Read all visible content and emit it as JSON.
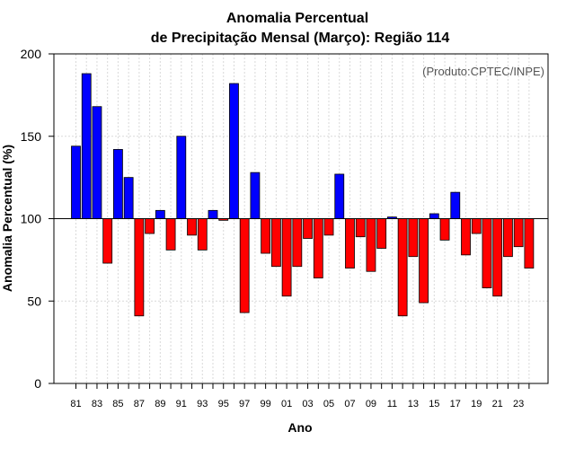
{
  "chart_data": {
    "type": "bar",
    "title_line1": "Anomalia Percentual",
    "title_line2": "de Precipitação Mensal (Março): Região 114",
    "xlabel": "Ano",
    "ylabel": "Anomalia Percentual (%)",
    "annotation": "(Produto:CPTEC/INPE)",
    "ylim": [
      0,
      200
    ],
    "yticks": [
      "0",
      "50",
      "100",
      "150",
      "200"
    ],
    "baseline": 100,
    "xtick_labels": [
      "81",
      "83",
      "85",
      "87",
      "89",
      "91",
      "93",
      "95",
      "97",
      "99",
      "01",
      "03",
      "05",
      "07",
      "09",
      "11",
      "13",
      "15",
      "17",
      "19",
      "21",
      "23"
    ],
    "categories": [
      "1981",
      "1982",
      "1983",
      "1984",
      "1985",
      "1986",
      "1987",
      "1988",
      "1989",
      "1990",
      "1991",
      "1992",
      "1993",
      "1994",
      "1995",
      "1996",
      "1997",
      "1998",
      "1999",
      "2000",
      "2001",
      "2002",
      "2003",
      "2004",
      "2005",
      "2006",
      "2007",
      "2008",
      "2009",
      "2010",
      "2011",
      "2012",
      "2013",
      "2014",
      "2015",
      "2016",
      "2017",
      "2018",
      "2019",
      "2020",
      "2021",
      "2022",
      "2023",
      "2024"
    ],
    "values": [
      144,
      188,
      168,
      73,
      142,
      125,
      41,
      91,
      105,
      81,
      150,
      90,
      81,
      105,
      99,
      182,
      43,
      128,
      79,
      71,
      53,
      71,
      88,
      64,
      90,
      127,
      70,
      89,
      68,
      82,
      101,
      41,
      77,
      49,
      103,
      87,
      116,
      78,
      91,
      58,
      53,
      77,
      83,
      70
    ],
    "colors": {
      "above": "#0000ff",
      "below": "#ff0000",
      "outline": "#000000",
      "grid": "#d9d9d9"
    }
  }
}
